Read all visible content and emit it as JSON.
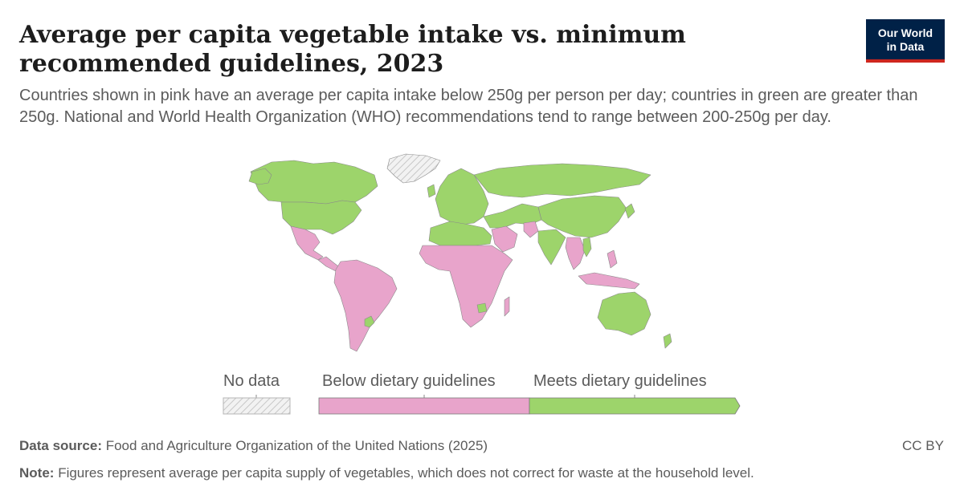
{
  "header": {
    "title": "Average per capita vegetable intake vs. minimum recommended guidelines, 2023",
    "subtitle": "Countries shown in pink have an average per capita intake below 250g per person per day; countries in green are greater than 250g. National and World Health Organization (WHO) recommendations tend to range between 200-250g per day."
  },
  "logo": {
    "line1": "Our World",
    "line2": "in Data"
  },
  "legend": {
    "no_data": "No data",
    "below": "Below dietary guidelines",
    "meets": "Meets dietary guidelines"
  },
  "colors": {
    "below": "#e8a4cb",
    "meets": "#9dd46b",
    "no_data": "#e0e0e0",
    "logo_bg": "#002147",
    "logo_accent": "#ce261e"
  },
  "map_data": {
    "type": "choropleth",
    "year": "2023",
    "categories": [
      "No data",
      "Below dietary guidelines",
      "Meets dietary guidelines"
    ],
    "regions": [
      {
        "region": "Greenland",
        "category": "No data"
      },
      {
        "region": "Canada",
        "category": "Meets dietary guidelines"
      },
      {
        "region": "United States",
        "category": "Meets dietary guidelines"
      },
      {
        "region": "Mexico",
        "category": "Below dietary guidelines"
      },
      {
        "region": "Central America",
        "category": "Below dietary guidelines"
      },
      {
        "region": "South America",
        "category": "Below dietary guidelines"
      },
      {
        "region": "Paraguay",
        "category": "Meets dietary guidelines"
      },
      {
        "region": "Europe",
        "category": "Meets dietary guidelines"
      },
      {
        "region": "Russia",
        "category": "Meets dietary guidelines"
      },
      {
        "region": "North Africa",
        "category": "Meets dietary guidelines"
      },
      {
        "region": "Sub-Saharan Africa",
        "category": "Below dietary guidelines"
      },
      {
        "region": "Zimbabwe",
        "category": "Meets dietary guidelines"
      },
      {
        "region": "Middle East",
        "category": "Meets dietary guidelines"
      },
      {
        "region": "Saudi Arabia",
        "category": "Below dietary guidelines"
      },
      {
        "region": "Pakistan",
        "category": "Below dietary guidelines"
      },
      {
        "region": "India",
        "category": "Meets dietary guidelines"
      },
      {
        "region": "China",
        "category": "Meets dietary guidelines"
      },
      {
        "region": "Southeast Asia",
        "category": "Below dietary guidelines"
      },
      {
        "region": "Vietnam",
        "category": "Meets dietary guidelines"
      },
      {
        "region": "Indonesia",
        "category": "Below dietary guidelines"
      },
      {
        "region": "Japan",
        "category": "Meets dietary guidelines"
      },
      {
        "region": "Australia",
        "category": "Meets dietary guidelines"
      },
      {
        "region": "New Zealand",
        "category": "Meets dietary guidelines"
      }
    ]
  },
  "footer": {
    "source_label": "Data source:",
    "source_text": "Food and Agriculture Organization of the United Nations (2025)",
    "license": "CC BY",
    "note_label": "Note:",
    "note_text": "Figures represent average per capita supply of vegetables, which does not correct for waste at the household level."
  }
}
